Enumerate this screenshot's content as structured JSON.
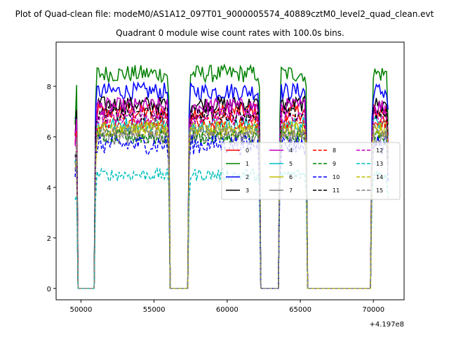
{
  "chart_data": {
    "type": "line",
    "suptitle": "Plot of Quad-clean file: modeM0/AS1A12_097T01_9000005574_40889cztM0_level2_quad_clean.evt",
    "title": "Quadrant 0 module wise count rates with 100.0s bins.",
    "xlabel": "",
    "ylabel": "",
    "x_offset_label": "+4.197e8",
    "xlim": [
      48300,
      72100
    ],
    "ylim": [
      -0.45,
      9.75
    ],
    "xticks": [
      50000,
      55000,
      60000,
      65000,
      70000
    ],
    "xtick_labels": [
      "50000",
      "55000",
      "60000",
      "65000",
      "70000"
    ],
    "yticks": [
      0,
      2,
      4,
      6,
      8
    ],
    "ytick_labels": [
      "0",
      "2",
      "4",
      "6",
      "8"
    ],
    "segments": [
      [
        49600,
        49700
      ],
      [
        51000,
        56000
      ],
      [
        57400,
        62200
      ],
      [
        63600,
        65400
      ],
      [
        69900,
        71000
      ]
    ],
    "legend_position": "center-right",
    "series": [
      {
        "name": "0",
        "color": "#ff0000",
        "dash": "solid",
        "base": 7.0,
        "noise": 0.35
      },
      {
        "name": "1",
        "color": "#008000",
        "dash": "solid",
        "base": 8.5,
        "noise": 0.35
      },
      {
        "name": "2",
        "color": "#0000ff",
        "dash": "solid",
        "base": 7.8,
        "noise": 0.35
      },
      {
        "name": "3",
        "color": "#000000",
        "dash": "solid",
        "base": 7.3,
        "noise": 0.3
      },
      {
        "name": "4",
        "color": "#bf00bf",
        "dash": "solid",
        "base": 7.2,
        "noise": 0.35
      },
      {
        "name": "5",
        "color": "#00bfbf",
        "dash": "solid",
        "base": 6.5,
        "noise": 0.3
      },
      {
        "name": "6",
        "color": "#bfbf00",
        "dash": "solid",
        "base": 6.3,
        "noise": 0.3
      },
      {
        "name": "7",
        "color": "#808080",
        "dash": "solid",
        "base": 6.0,
        "noise": 0.3
      },
      {
        "name": "8",
        "color": "#ff0000",
        "dash": "dashed",
        "base": 6.6,
        "noise": 0.3
      },
      {
        "name": "9",
        "color": "#008000",
        "dash": "dashed",
        "base": 6.0,
        "noise": 0.3
      },
      {
        "name": "10",
        "color": "#0000ff",
        "dash": "dashed",
        "base": 5.7,
        "noise": 0.4
      },
      {
        "name": "11",
        "color": "#000000",
        "dash": "dashed",
        "base": 6.9,
        "noise": 0.3
      },
      {
        "name": "12",
        "color": "#bf00bf",
        "dash": "dashed",
        "base": 6.8,
        "noise": 0.3
      },
      {
        "name": "13",
        "color": "#00bfbf",
        "dash": "dashed",
        "base": 4.5,
        "noise": 0.25
      },
      {
        "name": "14",
        "color": "#bfbf00",
        "dash": "dashed",
        "base": 6.3,
        "noise": 0.3
      },
      {
        "name": "15",
        "color": "#808080",
        "dash": "dashed",
        "base": 6.2,
        "noise": 0.3
      }
    ]
  }
}
